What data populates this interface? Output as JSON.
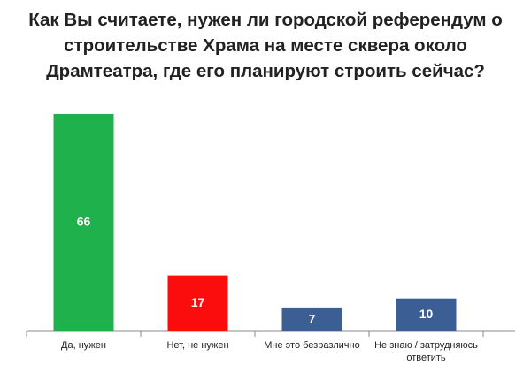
{
  "chart_data": {
    "type": "bar",
    "title": "Как Вы считаете, нужен ли городской референдум о строительстве Храма на месте сквера около Драмтеатра, где его планируют строить сейчас?",
    "categories": [
      "Да, нужен",
      "Нет, не нужен",
      "Мне это безразлично",
      "Не знаю / затрудняюсь ответить"
    ],
    "values": [
      66,
      17,
      7,
      10
    ],
    "colors": [
      "#1fb14b",
      "#fb0d0d",
      "#3b5f94",
      "#3b5f94"
    ],
    "ylim": [
      0,
      70
    ]
  }
}
